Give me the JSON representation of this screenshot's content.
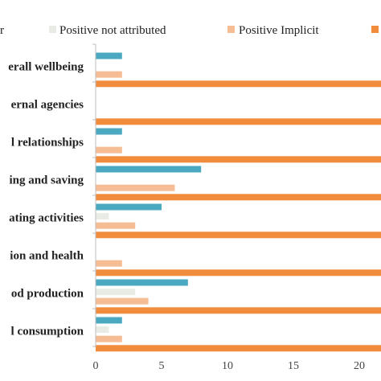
{
  "chart_data": {
    "type": "bar",
    "orientation": "horizontal",
    "categories": [
      "erall wellbeing",
      "ernal agencies",
      "l relationships",
      "ing and saving",
      "ating activities",
      "ion and health",
      "od production",
      "l consumption"
    ],
    "series": [
      {
        "name": "r",
        "color": "#4aa8c0",
        "values": [
          2,
          0,
          2,
          8,
          5,
          0,
          7,
          2
        ]
      },
      {
        "name": "Positive not attributed",
        "color": "#e8ece4",
        "values": [
          0,
          0,
          0,
          0,
          1,
          0,
          3,
          1
        ]
      },
      {
        "name": "Positive Implicit",
        "color": "#f6bc93",
        "values": [
          2,
          0,
          2,
          6,
          3,
          2,
          4,
          2
        ]
      },
      {
        "name": "",
        "color": "#f08c3c",
        "values": [
          25,
          25,
          25,
          25,
          25,
          25,
          25,
          25
        ]
      }
    ],
    "series_values_note": "",
    "x_ticks": [
      "0",
      "5",
      "10",
      "15",
      "20"
    ],
    "xlim": [
      0,
      23
    ],
    "grid": false,
    "legend_position": "top"
  }
}
